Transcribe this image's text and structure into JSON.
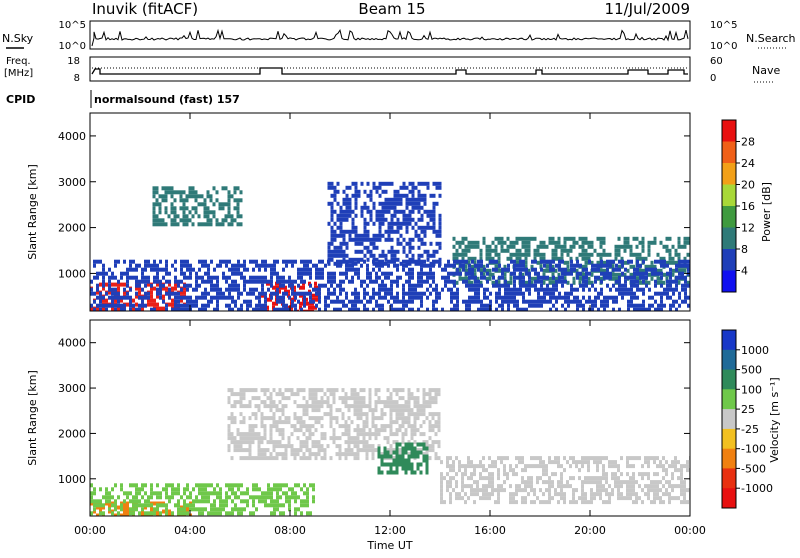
{
  "header": {
    "station": "Inuvik (fitACF)",
    "beam": "Beam 15",
    "date": "11/Jul/2009"
  },
  "top_panels": {
    "nsky_label": "N.Sky",
    "nsky_ticks": [
      "10^5",
      "10^0"
    ],
    "nsearch_label": "N.Search",
    "nsearch_ticks": [
      "10^5",
      "10^0"
    ],
    "freq_label_line1": "Freq.",
    "freq_label_line2": "[MHz]",
    "freq_ticks": [
      "18",
      "8"
    ],
    "nave_label": "Nave",
    "nave_ticks": [
      "60",
      "0"
    ],
    "cpid_label": "CPID",
    "cpid_value": "normalsound (fast) 157"
  },
  "chart_data": [
    {
      "type": "heatmap",
      "panel": "power",
      "ylabel": "Slant Range [km]",
      "ylim": [
        180,
        4500
      ],
      "y_ticks": [
        "1000",
        "2000",
        "3000",
        "4000"
      ],
      "colorbar_label": "Power [dB]",
      "colorbar_ticks": [
        "4",
        "8",
        "12",
        "16",
        "20",
        "24",
        "28"
      ],
      "colorbar_colors": [
        "#1010f0",
        "#1f3fb8",
        "#2f7a78",
        "#3f9a3f",
        "#a8d838",
        "#f2a018",
        "#f06018",
        "#e81010"
      ],
      "regions": [
        {
          "x": [
            0.0,
            3.8
          ],
          "y": [
            200,
            800
          ],
          "level": "#e82018"
        },
        {
          "x": [
            6.8,
            9.2
          ],
          "y": [
            200,
            820
          ],
          "level": "#e81010"
        },
        {
          "x": [
            2.5,
            6.0
          ],
          "y": [
            2100,
            2900
          ],
          "level": "#2f7a78"
        },
        {
          "x": [
            9.5,
            14.0
          ],
          "y": [
            1200,
            3000
          ],
          "level": "#1f3fb8"
        },
        {
          "x": [
            14.5,
            24.0
          ],
          "y": [
            800,
            1800
          ],
          "level": "#2f7a78"
        },
        {
          "x": [
            0.0,
            24.0
          ],
          "y": [
            200,
            1300
          ],
          "level": "#1f3fb8"
        }
      ]
    },
    {
      "type": "heatmap",
      "panel": "velocity",
      "xlabel": "Time UT",
      "ylabel": "Slant Range [km]",
      "x_ticks": [
        "00:00",
        "04:00",
        "08:00",
        "12:00",
        "16:00",
        "20:00",
        "00:00"
      ],
      "ylim": [
        180,
        4500
      ],
      "y_ticks": [
        "1000",
        "2000",
        "3000",
        "4000"
      ],
      "colorbar_label": "Velocity [m s⁻¹]",
      "colorbar_ticks": [
        "1000",
        "500",
        "100",
        "25",
        "-25",
        "-100",
        "-500",
        "-1000"
      ],
      "colorbar_colors": [
        "#1838c8",
        "#1f6a98",
        "#2f8a5a",
        "#6fc84a",
        "#c8c8c8",
        "#f2c020",
        "#f08010",
        "#e83010",
        "#e81010"
      ],
      "regions": [
        {
          "x": [
            0.0,
            4.0
          ],
          "y": [
            200,
            500
          ],
          "level": "#f08010"
        },
        {
          "x": [
            0.0,
            9.0
          ],
          "y": [
            200,
            900
          ],
          "level": "#6fc84a"
        },
        {
          "x": [
            5.5,
            14.0
          ],
          "y": [
            1500,
            3000
          ],
          "level": "#c8c8c8"
        },
        {
          "x": [
            11.5,
            13.5
          ],
          "y": [
            1100,
            1800
          ],
          "level": "#2f8a5a"
        },
        {
          "x": [
            14.0,
            24.0
          ],
          "y": [
            500,
            1500
          ],
          "level": "#c8c8c8"
        }
      ]
    }
  ]
}
